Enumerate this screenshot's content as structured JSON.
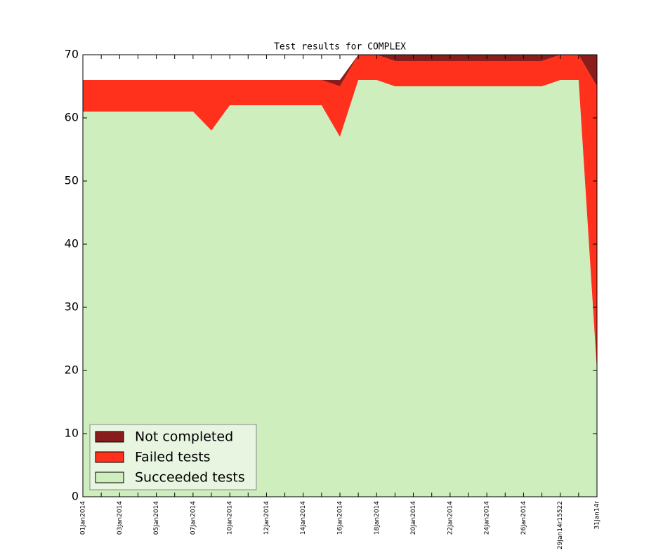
{
  "chart_data": {
    "type": "stacked_area",
    "title": "Test results for COMPLEX",
    "categories": [
      "01Jan2014",
      null,
      "03Jan2014",
      null,
      "05Jan2014",
      null,
      "07Jan2014",
      null,
      "10Jan2014",
      null,
      "12Jan2014",
      null,
      "14Jan2014",
      null,
      "16Jan2014",
      null,
      "18Jan2014",
      null,
      "20Jan2014",
      null,
      "22Jan2014",
      null,
      "24Jan2014",
      null,
      "26Jan2014",
      null,
      "29Jan14r15522",
      null,
      "31Jan14r"
    ],
    "series": [
      {
        "name": "Succeeded tests",
        "color": "#cfeebe",
        "values": [
          61,
          61,
          61,
          61,
          61,
          61,
          61,
          58,
          62,
          62,
          62,
          62,
          62,
          62,
          57,
          66,
          66,
          65,
          65,
          65,
          65,
          65,
          65,
          65,
          65,
          65,
          66,
          66,
          20
        ]
      },
      {
        "name": "Failed tests",
        "color": "#ff301c",
        "values": [
          5,
          5,
          5,
          5,
          5,
          5,
          5,
          8,
          4,
          4,
          4,
          4,
          4,
          4,
          8,
          4,
          4,
          4,
          4,
          4,
          4,
          4,
          4,
          4,
          4,
          4,
          4,
          4,
          45
        ]
      },
      {
        "name": "Not completed",
        "color": "#8b1c1c",
        "values": [
          0,
          0,
          0,
          0,
          0,
          0,
          0,
          0,
          0,
          0,
          0,
          0,
          0,
          0,
          1,
          0,
          0,
          1,
          1,
          1,
          1,
          1,
          1,
          1,
          1,
          1,
          0,
          0,
          5
        ]
      }
    ],
    "ylim": [
      0,
      70
    ],
    "yticks": [
      0,
      10,
      20,
      30,
      40,
      50,
      60,
      70
    ],
    "legend": "lower left"
  }
}
